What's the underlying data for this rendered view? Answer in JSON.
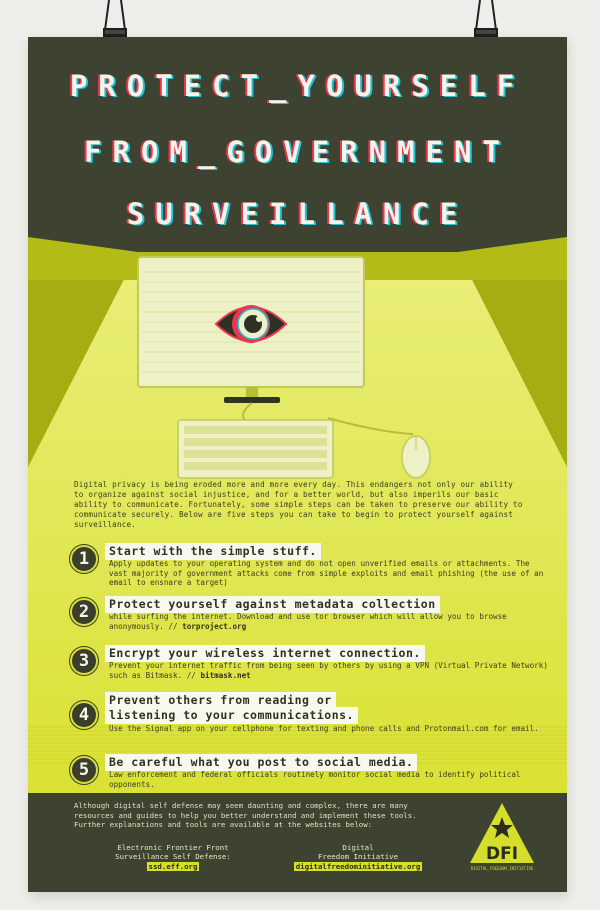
{
  "title": {
    "line1": "PROTECT_YOURSELF",
    "line2": "FROM_GOVERNMENT",
    "line3": "SURVEILLANCE"
  },
  "intro": "Digital privacy is being eroded more and more every day. This endangers not only our ability to organize against social injustice, and for a better world, but also imperils our basic ability to communicate. Fortunately, some simple steps can be taken to preserve our ability to communicate securely. Below are five steps you can take to begin to protect yourself against surveillance.",
  "steps": [
    {
      "num": "1",
      "head": "Start with the simple stuff.",
      "body": "Apply updates to your operating system and do not open unverified emails or attachments. The vast majority of government attacks come from simple exploits and email phishing (the use of an email to ensnare a target)",
      "link": ""
    },
    {
      "num": "2",
      "head": "Protect yourself against metadata collection",
      "body": "while surfing the internet. Download and use tor browser which will allow you to browse anonymously.  //",
      "link": "torproject.org"
    },
    {
      "num": "3",
      "head": "Encrypt your wireless internet connection.",
      "body": "Prevent your internet traffic from being seen by others by using a VPN (Virtual Private Network) such as Bitmask.  //",
      "link": "bitmask.net"
    },
    {
      "num": "4",
      "head1": "Prevent others from reading or",
      "head2": "listening to your communications.",
      "body": "Use the Signal app on your cellphone for texting and phone calls and Protonmail.com for email.",
      "link": ""
    },
    {
      "num": "5",
      "head": "Be careful what you post to social media.",
      "body": "Law enforcement and federal officials routinely monitor social media to identify political opponents.",
      "link": ""
    }
  ],
  "footer": {
    "text": "Although digital self defense may seem daunting and complex, there are many resources and guides to help you better understand and implement these tools. Further explanations and tools are available at the websites below:",
    "org1_line1": "Electronic Frontier Front",
    "org1_line2": "Surveillance Self Defense:",
    "org1_url": "ssd.eff.org",
    "org2_line1": "Digital",
    "org2_line2": "Freedom Initiative",
    "org2_url": "digitalfreedominitiative.org"
  },
  "logo": {
    "text": "DFI",
    "tagline": "DIGITAL_FREEDOM_INITIATIVE"
  },
  "colors": {
    "poster_yellow": "#c9d40f",
    "dark_band": "#3d4330",
    "accent_red": "#e8384f",
    "accent_cyan": "#21c4d6"
  }
}
